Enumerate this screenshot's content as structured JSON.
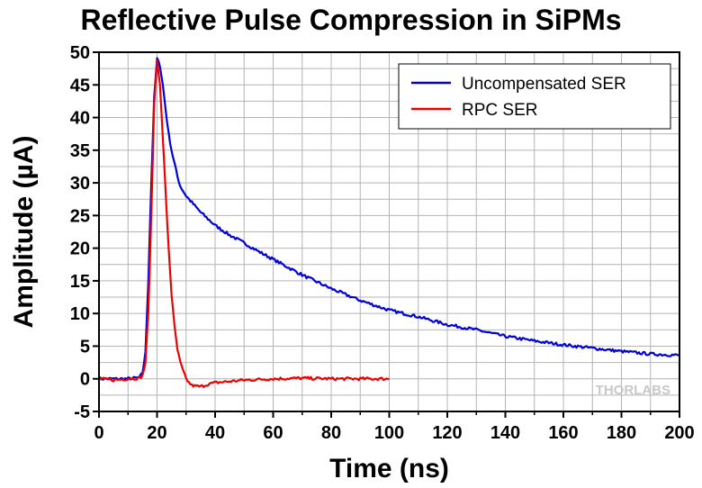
{
  "title": "Reflective Pulse Compression in SiPMs",
  "watermark": "THORLABS",
  "colors": {
    "uncompensated": "#0000dd",
    "rpc": "#ee0000",
    "grid": "#b4b4b4",
    "axis": "#000000"
  },
  "chart_data": {
    "type": "line",
    "title": "Reflective Pulse Compression in SiPMs",
    "xlabel": "Time (ns)",
    "ylabel": "Amplitude (µA)",
    "xlim": [
      0,
      200
    ],
    "ylim": [
      -5,
      50
    ],
    "xticks": [
      0,
      20,
      40,
      60,
      80,
      100,
      120,
      140,
      160,
      180,
      200
    ],
    "yticks": [
      -5,
      0,
      5,
      10,
      15,
      20,
      25,
      30,
      35,
      40,
      45,
      50
    ],
    "grid": true,
    "legend_position": "top-right",
    "series": [
      {
        "name": "Uncompensated SER",
        "color": "#0000dd",
        "x": [
          0,
          5,
          10,
          14,
          15,
          16,
          17,
          18,
          19,
          20,
          21,
          22,
          23,
          24,
          25,
          26,
          27,
          28,
          30,
          32,
          35,
          40,
          45,
          50,
          55,
          60,
          70,
          80,
          90,
          100,
          110,
          120,
          130,
          140,
          150,
          160,
          170,
          180,
          190,
          200
        ],
        "y": [
          0,
          0,
          0,
          0.2,
          1,
          4,
          15,
          30,
          43,
          49,
          48,
          45,
          41,
          37.5,
          35,
          33,
          31,
          29.5,
          28,
          27,
          25.5,
          23.5,
          22,
          20.8,
          19.5,
          18.3,
          15.9,
          13.8,
          12,
          10.5,
          9.5,
          8.3,
          7.5,
          6.5,
          5.8,
          5.2,
          4.7,
          4.2,
          3.8,
          3.6
        ]
      },
      {
        "name": "RPC SER",
        "color": "#ee0000",
        "x": [
          0,
          5,
          10,
          14,
          15,
          16,
          17,
          18,
          19,
          20,
          21,
          22,
          23,
          24,
          25,
          26,
          27,
          28,
          29,
          30,
          31,
          32,
          33,
          35,
          37,
          40,
          45,
          50,
          55,
          60,
          70,
          80,
          90,
          100
        ],
        "y": [
          0,
          -0.2,
          0,
          0.1,
          0.5,
          2.5,
          10,
          25,
          42,
          49,
          45,
          37,
          28,
          20,
          13,
          8,
          4.5,
          2.5,
          1.2,
          0,
          -0.6,
          -1,
          -1.1,
          -1.2,
          -0.9,
          -0.6,
          -0.4,
          -0.2,
          -0.1,
          0,
          0.1,
          0,
          0,
          0
        ]
      }
    ]
  }
}
